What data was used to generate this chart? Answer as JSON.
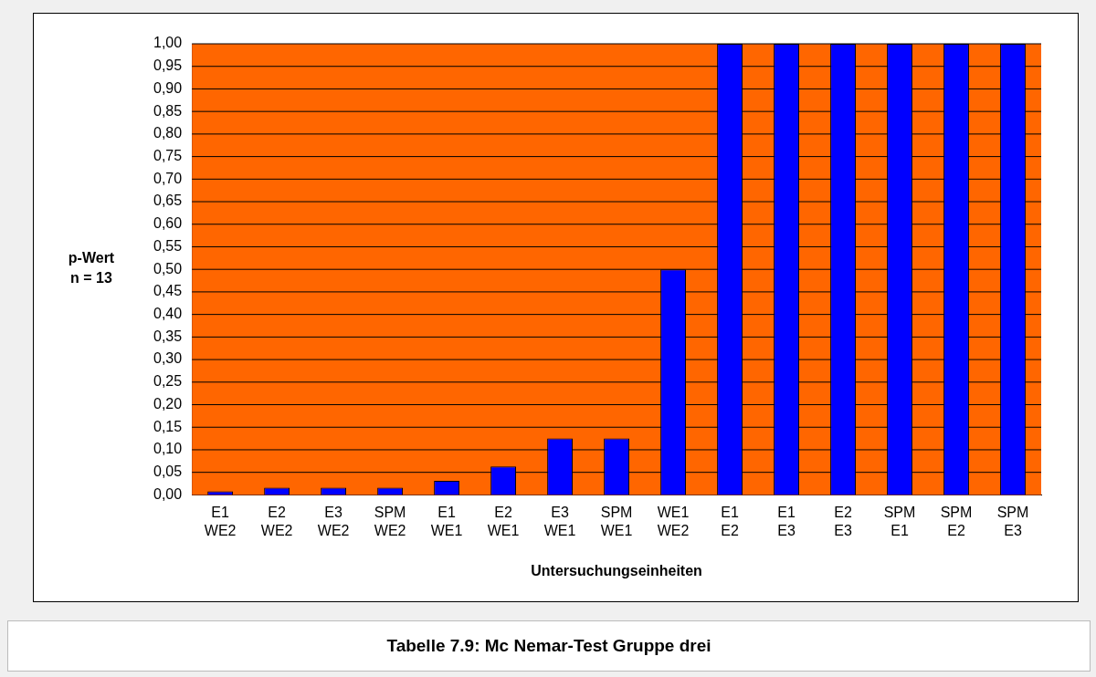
{
  "chart_data": {
    "type": "bar",
    "ylabel": "p-Wert\nn = 13",
    "xlabel": "Untersuchungseinheiten",
    "annotations": [
      "Tabelle 7.9: Mc Nemar-Test Gruppe drei"
    ],
    "categories": [
      "E1\nWE2",
      "E2\nWE2",
      "E3\nWE2",
      "SPM\nWE2",
      "E1\nWE1",
      "E2\nWE1",
      "E3\nWE1",
      "SPM\nWE1",
      "WE1\nWE2",
      "E1\nE2",
      "E1\nE3",
      "E2\nE3",
      "SPM\nE1",
      "SPM\nE2",
      "SPM\nE3"
    ],
    "values": [
      0.008,
      0.016,
      0.016,
      0.016,
      0.031,
      0.063,
      0.125,
      0.125,
      0.5,
      1,
      1,
      1,
      1,
      1,
      1
    ],
    "color": "#0000ff",
    "ylim": [
      0,
      1
    ],
    "yticks": [
      {
        "value": 0,
        "label": "0,00"
      },
      {
        "value": 0.05,
        "label": "0,05"
      },
      {
        "value": 0.1,
        "label": "0,10"
      },
      {
        "value": 0.15,
        "label": "0,15"
      },
      {
        "value": 0.2,
        "label": "0,20"
      },
      {
        "value": 0.25,
        "label": "0,25"
      },
      {
        "value": 0.3,
        "label": "0,30"
      },
      {
        "value": 0.35,
        "label": "0,35"
      },
      {
        "value": 0.4,
        "label": "0,40"
      },
      {
        "value": 0.45,
        "label": "0,45"
      },
      {
        "value": 0.5,
        "label": "0,50"
      },
      {
        "value": 0.55,
        "label": "0,55"
      },
      {
        "value": 0.6,
        "label": "0,60"
      },
      {
        "value": 0.65,
        "label": "0,65"
      },
      {
        "value": 0.7,
        "label": "0,70"
      },
      {
        "value": 0.75,
        "label": "0,75"
      },
      {
        "value": 0.8,
        "label": "0,80"
      },
      {
        "value": 0.85,
        "label": "0,85"
      },
      {
        "value": 0.9,
        "label": "0,90"
      },
      {
        "value": 0.95,
        "label": "0,95"
      },
      {
        "value": 1,
        "label": "1,00"
      }
    ],
    "grid": "y",
    "legend": false
  }
}
